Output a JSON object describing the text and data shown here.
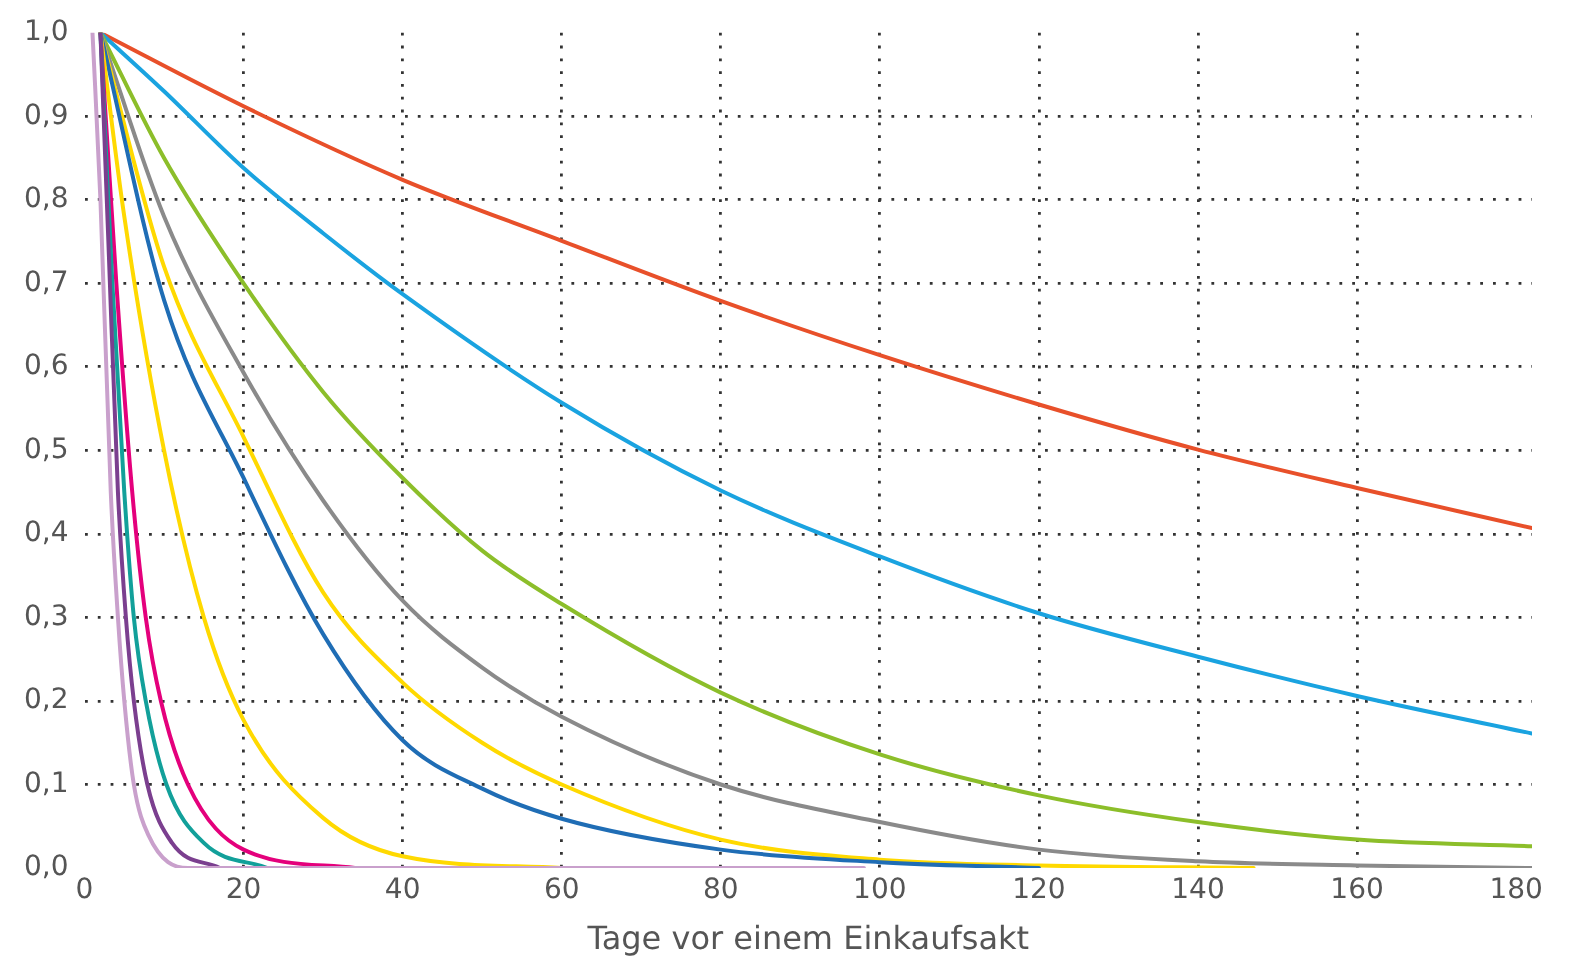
{
  "chart_data": {
    "type": "line",
    "xlabel": "Tage vor einem Einkaufsakt",
    "xlim": [
      0,
      182
    ],
    "xticks": [
      0,
      20,
      40,
      60,
      80,
      100,
      120,
      140,
      160,
      180
    ],
    "ylim": [
      0,
      1
    ],
    "yticks": [
      {
        "value": 0,
        "label": "0,0"
      },
      {
        "value": 0.1,
        "label": "0,1"
      },
      {
        "value": 0.2,
        "label": "0,2"
      },
      {
        "value": 0.3,
        "label": "0,3"
      },
      {
        "value": 0.4,
        "label": "0,4"
      },
      {
        "value": 0.5,
        "label": "0,5"
      },
      {
        "value": 0.6,
        "label": "0,6"
      },
      {
        "value": 0.7,
        "label": "0,7"
      },
      {
        "value": 0.8,
        "label": "0,8"
      },
      {
        "value": 0.9,
        "label": "0,9"
      },
      {
        "value": 1,
        "label": "1,0"
      }
    ],
    "grid": true,
    "legend": false,
    "marker": "none",
    "line_style": "solid",
    "series": [
      {
        "color": "#c9a0cc",
        "x": [
          1,
          2,
          3.3,
          4.2,
          5,
          6.2,
          8,
          13,
          98
        ],
        "values": [
          1,
          0.8,
          0.45,
          0.3,
          0.2,
          0.1,
          0.04,
          0,
          0
        ]
      },
      {
        "color": "#7b3f8f",
        "x": [
          2,
          3,
          4.2,
          5.2,
          6.2,
          7.9,
          11,
          17
        ],
        "values": [
          1,
          0.75,
          0.45,
          0.3,
          0.2,
          0.1,
          0.03,
          0
        ]
      },
      {
        "color": "#12a09a",
        "x": [
          2,
          3.5,
          5,
          6.2,
          7.7,
          10.3,
          15,
          23
        ],
        "values": [
          1,
          0.7,
          0.45,
          0.3,
          0.2,
          0.1,
          0.03,
          0
        ]
      },
      {
        "color": "#e4007c",
        "x": [
          2,
          4,
          6,
          7.7,
          9.6,
          13,
          20,
          34
        ],
        "values": [
          1,
          0.7,
          0.45,
          0.3,
          0.2,
          0.1,
          0.022,
          0
        ]
      },
      {
        "color": "#ffd900",
        "x": [
          2,
          5,
          10,
          15,
          20,
          30,
          40,
          60
        ],
        "values": [
          1,
          0.78,
          0.5,
          0.3,
          0.177,
          0.06,
          0.014,
          0
        ]
      },
      {
        "color": "#1f6db5",
        "x": [
          2,
          10,
          20,
          30,
          40,
          50,
          60,
          80,
          100,
          120
        ],
        "values": [
          1,
          0.68,
          0.467,
          0.28,
          0.153,
          0.095,
          0.059,
          0.022,
          0.007,
          0
        ]
      },
      {
        "color": "#ffd900",
        "x": [
          2,
          10,
          20,
          30,
          40,
          50,
          60,
          80,
          100,
          120,
          147
        ],
        "values": [
          1,
          0.72,
          0.516,
          0.33,
          0.222,
          0.15,
          0.1,
          0.034,
          0.01,
          0.003,
          0
        ]
      },
      {
        "color": "#8a8a8a",
        "x": [
          2,
          10,
          20,
          30,
          40,
          50,
          60,
          80,
          100,
          120,
          140,
          160,
          182
        ],
        "values": [
          1,
          0.78,
          0.593,
          0.44,
          0.32,
          0.24,
          0.181,
          0.1,
          0.055,
          0.022,
          0.008,
          0.003,
          0
        ]
      },
      {
        "color": "#8cbe2a",
        "x": [
          2,
          10,
          20,
          30,
          40,
          50,
          60,
          80,
          100,
          120,
          140,
          160,
          182
        ],
        "values": [
          1,
          0.85,
          0.7,
          0.57,
          0.467,
          0.38,
          0.316,
          0.21,
          0.136,
          0.087,
          0.055,
          0.034,
          0.026
        ]
      },
      {
        "color": "#1aa3e0",
        "x": [
          2,
          10,
          20,
          30,
          40,
          60,
          80,
          100,
          120,
          140,
          160,
          182
        ],
        "values": [
          1,
          0.93,
          0.838,
          0.76,
          0.687,
          0.557,
          0.452,
          0.373,
          0.305,
          0.253,
          0.206,
          0.161
        ]
      },
      {
        "color": "#e8502a",
        "x": [
          2,
          20,
          40,
          60,
          80,
          100,
          120,
          140,
          160,
          182
        ],
        "values": [
          1,
          0.912,
          0.824,
          0.751,
          0.679,
          0.614,
          0.555,
          0.501,
          0.455,
          0.407
        ]
      }
    ]
  }
}
